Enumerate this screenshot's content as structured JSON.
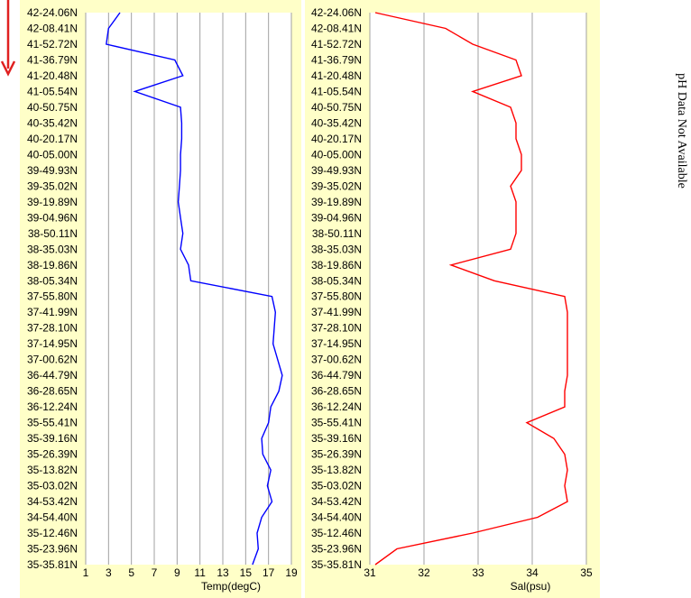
{
  "note": "pH Data Not Available",
  "colors": {
    "panel_bg": "#ffffc8",
    "plot_bg": "#ffffff",
    "grid": "#a0a0a0",
    "temp_line": "#0000ff",
    "sal_line": "#ff0000",
    "arrow": "#e02020"
  },
  "latitude_labels": [
    "42-24.06N",
    "42-08.41N",
    "41-52.72N",
    "41-36.79N",
    "41-20.48N",
    "41-05.54N",
    "40-50.75N",
    "40-35.42N",
    "40-20.17N",
    "40-05.00N",
    "39-49.93N",
    "39-35.02N",
    "39-19.89N",
    "39-04.96N",
    "38-50.11N",
    "38-35.03N",
    "38-19.86N",
    "38-05.34N",
    "37-55.80N",
    "37-41.99N",
    "37-28.10N",
    "37-14.95N",
    "37-00.62N",
    "36-44.79N",
    "36-28.65N",
    "36-12.24N",
    "35-55.41N",
    "35-39.16N",
    "35-26.39N",
    "35-13.82N",
    "35-03.02N",
    "34-53.42N",
    "34-54.40N",
    "35-12.46N",
    "35-23.96N",
    "35-35.81N"
  ],
  "chart_data": [
    {
      "type": "line",
      "xlabel": "Temp(degC)",
      "xlim": [
        1,
        19
      ],
      "xticks": [
        1,
        3,
        5,
        7,
        9,
        11,
        13,
        15,
        17,
        19
      ],
      "grid": true,
      "orientation": "vertical-profile",
      "y": [
        "42-24.06N",
        "42-08.41N",
        "41-52.72N",
        "41-36.79N",
        "41-20.48N",
        "41-05.54N",
        "40-50.75N",
        "40-35.42N",
        "40-20.17N",
        "40-05.00N",
        "39-49.93N",
        "39-35.02N",
        "39-19.89N",
        "39-04.96N",
        "38-50.11N",
        "38-35.03N",
        "38-19.86N",
        "38-05.34N",
        "37-55.80N",
        "37-41.99N",
        "37-28.10N",
        "37-14.95N",
        "37-00.62N",
        "36-44.79N",
        "36-28.65N",
        "36-12.24N",
        "35-55.41N",
        "35-39.16N",
        "35-26.39N",
        "35-13.82N",
        "35-03.02N",
        "34-53.42N",
        "34-54.40N",
        "35-12.46N",
        "35-23.96N",
        "35-35.81N"
      ],
      "series": [
        {
          "values": [
            4.0,
            3.0,
            2.8,
            8.8,
            9.5,
            5.3,
            9.3,
            9.4,
            9.4,
            9.3,
            9.3,
            9.2,
            9.1,
            9.3,
            9.5,
            9.3,
            10.0,
            10.2,
            17.3,
            17.6,
            17.5,
            17.4,
            17.8,
            18.2,
            17.9,
            17.2,
            17.0,
            16.4,
            16.5,
            17.2,
            16.9,
            17.3,
            16.4,
            16.0,
            16.1,
            15.6
          ]
        }
      ]
    },
    {
      "type": "line",
      "xlabel": "Sal(psu)",
      "xlim": [
        31,
        35
      ],
      "xticks": [
        31,
        32,
        33,
        34,
        35
      ],
      "grid": true,
      "orientation": "vertical-profile",
      "y": [
        "42-24.06N",
        "42-08.41N",
        "41-52.72N",
        "41-36.79N",
        "41-20.48N",
        "41-05.54N",
        "40-50.75N",
        "40-35.42N",
        "40-20.17N",
        "40-05.00N",
        "39-49.93N",
        "39-35.02N",
        "39-19.89N",
        "39-04.96N",
        "38-50.11N",
        "38-35.03N",
        "38-19.86N",
        "38-05.34N",
        "37-55.80N",
        "37-41.99N",
        "37-28.10N",
        "37-14.95N",
        "37-00.62N",
        "36-44.79N",
        "36-28.65N",
        "36-12.24N",
        "35-55.41N",
        "35-39.16N",
        "35-26.39N",
        "35-13.82N",
        "35-03.02N",
        "34-53.42N",
        "34-54.40N",
        "35-12.46N",
        "35-23.96N",
        "35-35.81N"
      ],
      "series": [
        {
          "values": [
            31.1,
            32.4,
            32.9,
            33.7,
            33.8,
            32.9,
            33.6,
            33.7,
            33.7,
            33.8,
            33.8,
            33.6,
            33.7,
            33.7,
            33.7,
            33.6,
            32.5,
            33.3,
            34.6,
            34.65,
            34.65,
            34.65,
            34.65,
            34.65,
            34.6,
            34.6,
            33.9,
            34.4,
            34.6,
            34.65,
            34.6,
            34.65,
            34.1,
            32.9,
            31.5,
            31.1
          ]
        }
      ]
    }
  ]
}
